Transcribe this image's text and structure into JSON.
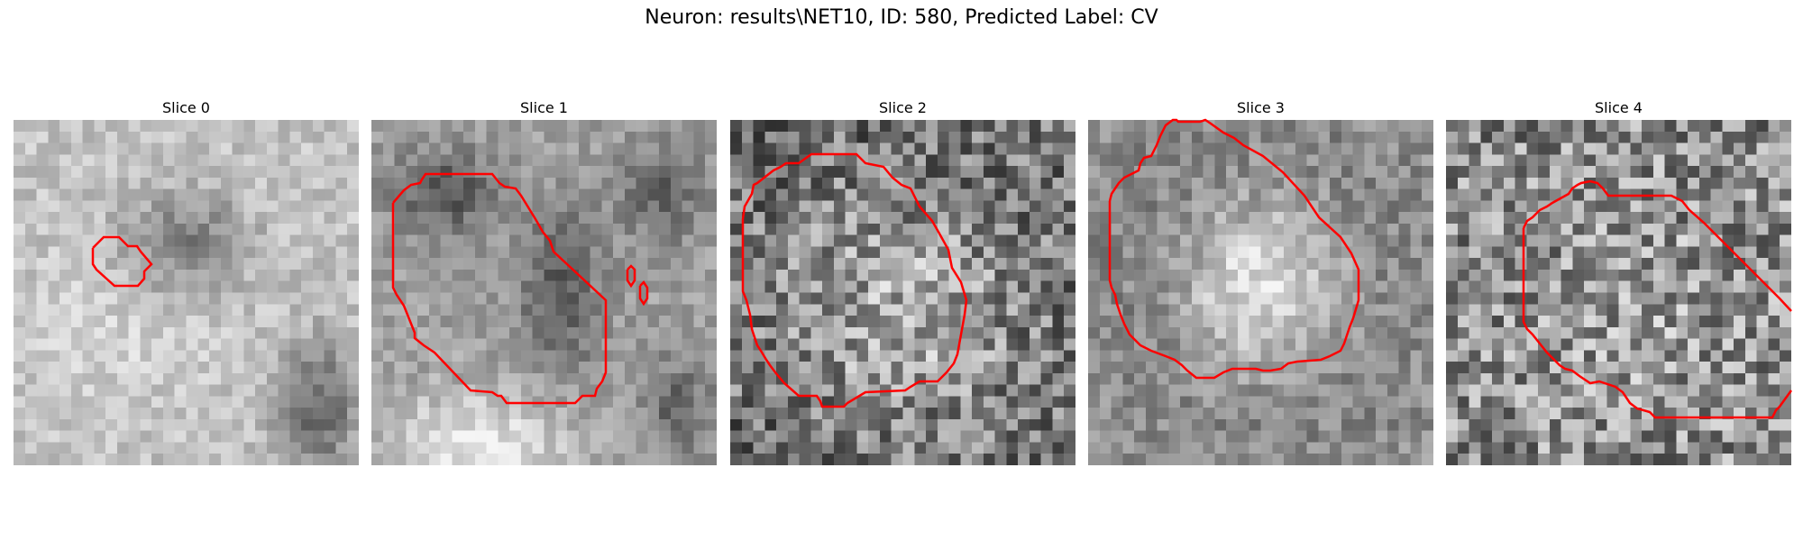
{
  "figure": {
    "title": "Neuron: results\\NET10, ID: 580, Predicted Label: CV"
  },
  "contour_color": "#ff0000",
  "slices": [
    {
      "title": "Slice 0"
    },
    {
      "title": "Slice 1"
    },
    {
      "title": "Slice 2"
    },
    {
      "title": "Slice 3"
    },
    {
      "title": "Slice 4"
    }
  ]
}
